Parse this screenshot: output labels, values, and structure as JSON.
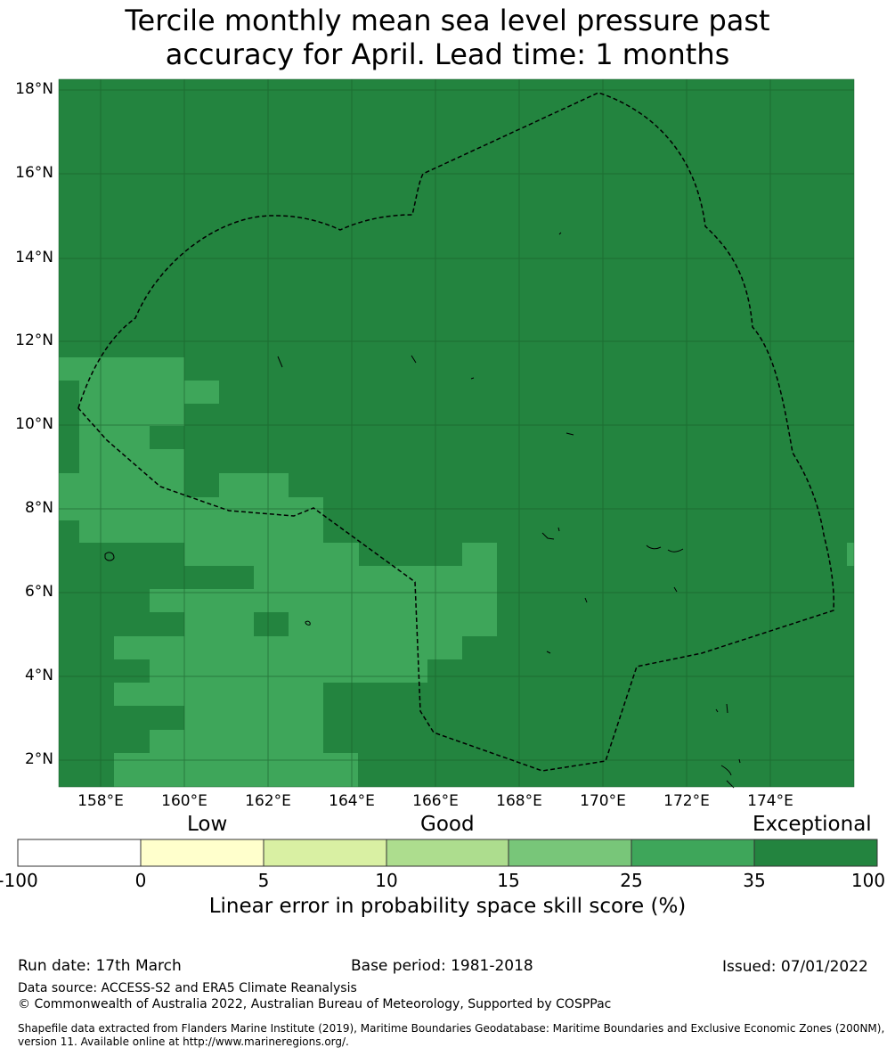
{
  "title_line1": "Tercile monthly mean sea level pressure past",
  "title_line2": "accuracy for April. Lead time: 1 months",
  "colors": {
    "exceptional": "#23843f",
    "good_plus": "#3ea65a",
    "grid": "#1a5e2b",
    "boundary": "#000000"
  },
  "axes": {
    "lat_ticks": [
      "18°N",
      "16°N",
      "14°N",
      "12°N",
      "10°N",
      "8°N",
      "6°N",
      "4°N",
      "2°N"
    ],
    "lon_ticks": [
      "158°E",
      "160°E",
      "162°E",
      "164°E",
      "166°E",
      "168°E",
      "170°E",
      "172°E",
      "174°E"
    ]
  },
  "colorbar": {
    "categories": [
      "Low",
      "Good",
      "Exceptional"
    ],
    "ticks": [
      "-100",
      "0",
      "5",
      "10",
      "15",
      "25",
      "35",
      "100"
    ],
    "colors": [
      "#ffffff",
      "#ffffcc",
      "#d9f0a3",
      "#addd8e",
      "#78c679",
      "#3ea65a",
      "#23843f"
    ],
    "label": "Linear error in probability space skill score (%)"
  },
  "footer": {
    "run_date": "Run date: 17th March",
    "base_period": "Base period: 1981-2018",
    "issued": "Issued: 07/01/2022",
    "data_source": "Data source: ACCESS-S2 and ERA5 Climate Reanalysis",
    "copyright": "© Commonwealth of Australia 2022, Australian Bureau of Meteorology, Supported by COSPPac",
    "shapefile_line1": "Shapefile data extracted from Flanders Marine Institute (2019), Maritime Boundaries Geodatabase: Maritime Boundaries and Exclusive Economic Zones (200NM),",
    "shapefile_line2": "version 11. Available online at http://www.marineregions.org/."
  }
}
